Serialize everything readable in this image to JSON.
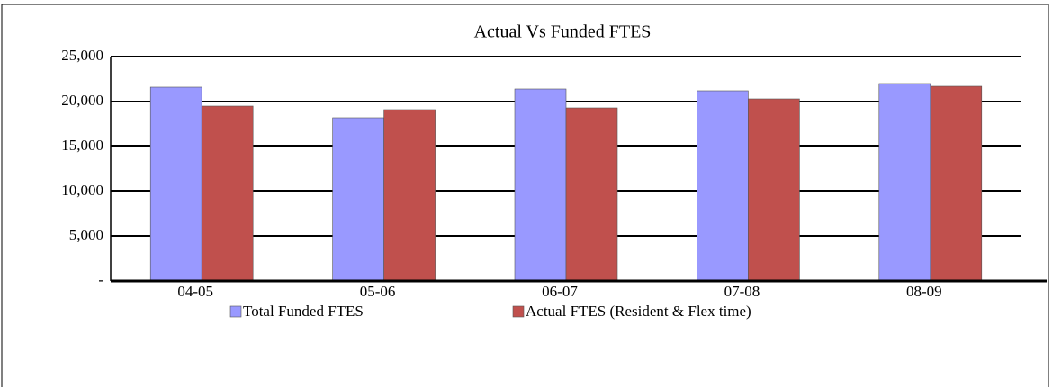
{
  "chart_data": {
    "type": "bar",
    "title": "Actual Vs Funded FTES",
    "categories": [
      "04-05",
      "05-06",
      "06-07",
      "07-08",
      "08-09"
    ],
    "series": [
      {
        "name": "Total Funded FTES",
        "color": "#9999ff",
        "values": [
          21600,
          18200,
          21400,
          21200,
          22000
        ]
      },
      {
        "name": "Actual FTES (Resident & Flex time)",
        "color": "#c0504d",
        "values": [
          19500,
          19100,
          19300,
          20300,
          21700
        ]
      }
    ],
    "ylim": [
      0,
      25000
    ],
    "yticks": [
      {
        "value": 0,
        "label": "-"
      },
      {
        "value": 5000,
        "label": "5,000"
      },
      {
        "value": 10000,
        "label": "10,000"
      },
      {
        "value": 15000,
        "label": "15,000"
      },
      {
        "value": 20000,
        "label": "20,000"
      },
      {
        "value": 25000,
        "label": "25,000"
      }
    ],
    "grid": true
  }
}
